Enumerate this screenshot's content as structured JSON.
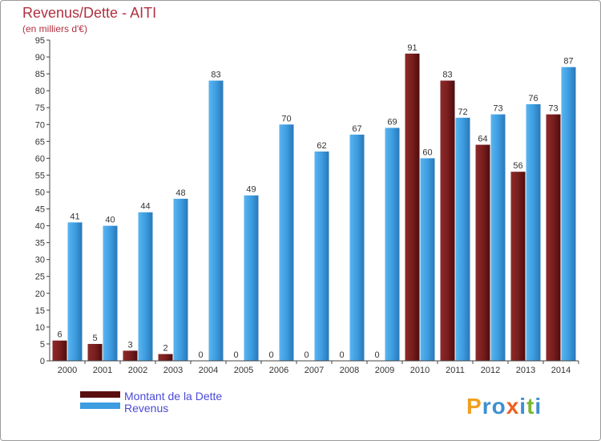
{
  "chart_data": {
    "type": "bar",
    "title": "Revenus/Dette - AITI",
    "subtitle": "(en milliers d'€)",
    "categories": [
      "2000",
      "2001",
      "2002",
      "2003",
      "2004",
      "2005",
      "2006",
      "2007",
      "2008",
      "2009",
      "2010",
      "2011",
      "2012",
      "2013",
      "2014"
    ],
    "series": [
      {
        "name": "Montant de la Dette",
        "color": "#7a1e1e",
        "values": [
          6,
          5,
          3,
          2,
          0,
          0,
          0,
          0,
          0,
          0,
          91,
          83,
          64,
          56,
          73
        ]
      },
      {
        "name": "Revenus",
        "color": "#3d9de0",
        "values": [
          41,
          40,
          44,
          48,
          83,
          49,
          70,
          62,
          67,
          69,
          60,
          72,
          73,
          76,
          87
        ]
      }
    ],
    "ylim": [
      0,
      95
    ],
    "yticks": [
      0,
      5,
      10,
      15,
      20,
      25,
      30,
      35,
      40,
      45,
      50,
      55,
      60,
      65,
      70,
      75,
      80,
      85,
      90,
      95
    ],
    "grid": false,
    "legend": "bottom-left"
  },
  "logo": {
    "text": "Proxiti"
  }
}
